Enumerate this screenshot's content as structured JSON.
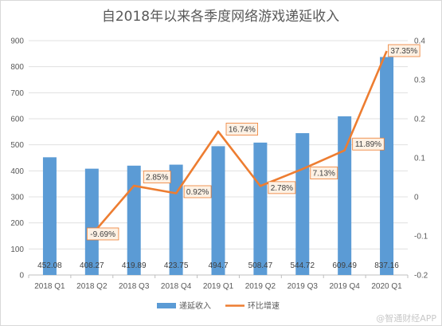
{
  "chart_data": {
    "type": "bar+line",
    "title": "自2018年以来各季度网络游戏递延收入",
    "categories": [
      "2018 Q1",
      "2018 Q2",
      "2018 Q3",
      "2018 Q4",
      "2019 Q1",
      "2019 Q2",
      "2019 Q3",
      "2019 Q4",
      "2020 Q1"
    ],
    "series": [
      {
        "name": "递延收入",
        "type": "bar",
        "axis": "left",
        "color": "#5b9bd5",
        "values": [
          452.08,
          408.27,
          419.89,
          423.75,
          494.7,
          508.47,
          544.72,
          609.49,
          837.16
        ],
        "labels": [
          "452.08",
          "408.27",
          "419.89",
          "423.75",
          "494.7",
          "508.47",
          "544.72",
          "609.49",
          "837.16"
        ]
      },
      {
        "name": "环比增速",
        "type": "line",
        "axis": "right",
        "color": "#ed7d31",
        "values": [
          null,
          -0.0969,
          0.0285,
          0.0092,
          0.1674,
          0.0278,
          0.0713,
          0.1189,
          0.3735
        ],
        "labels": [
          null,
          "-9.69%",
          "2.85%",
          "0.92%",
          "16.74%",
          "2.78%",
          "7.13%",
          "11.89%",
          "37.35%"
        ]
      }
    ],
    "ylim_left": [
      0,
      900
    ],
    "yticks_left": [
      "0",
      "100",
      "200",
      "300",
      "400",
      "500",
      "600",
      "700",
      "800",
      "900"
    ],
    "ylim_right": [
      -0.2,
      0.4
    ],
    "yticks_right": [
      "-0.2",
      "-0.1",
      "0",
      "0.1",
      "0.2",
      "0.3",
      "0.4"
    ],
    "grid": true,
    "legend_position": "bottom"
  },
  "watermark": "@智通财经APP"
}
